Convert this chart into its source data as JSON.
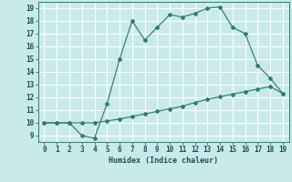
{
  "xlabel": "Humidex (Indice chaleur)",
  "x_vals": [
    0,
    1,
    2,
    3,
    4,
    5,
    6,
    7,
    8,
    9,
    10,
    11,
    12,
    13,
    14,
    15,
    16,
    17,
    18,
    19
  ],
  "line1_y": [
    10,
    10,
    10,
    9,
    8.8,
    11.5,
    15,
    18,
    16.5,
    17.5,
    18.5,
    18.3,
    18.6,
    19,
    19.1,
    17.5,
    17,
    14.5,
    13.5,
    12.3
  ],
  "line2_y": [
    10,
    10,
    10,
    10,
    10,
    10.15,
    10.3,
    10.5,
    10.7,
    10.9,
    11.1,
    11.3,
    11.6,
    11.85,
    12.05,
    12.25,
    12.45,
    12.65,
    12.85,
    12.3
  ],
  "line_color": "#2e7d6e",
  "bg_color": "#c8eaea",
  "grid_color": "#b8d8d8",
  "xlim": [
    -0.5,
    19.5
  ],
  "ylim": [
    8.5,
    19.5
  ],
  "xticks": [
    0,
    1,
    2,
    3,
    4,
    5,
    6,
    7,
    8,
    9,
    10,
    11,
    12,
    13,
    14,
    15,
    16,
    17,
    18,
    19
  ],
  "yticks": [
    9,
    10,
    11,
    12,
    13,
    14,
    15,
    16,
    17,
    18,
    19
  ]
}
